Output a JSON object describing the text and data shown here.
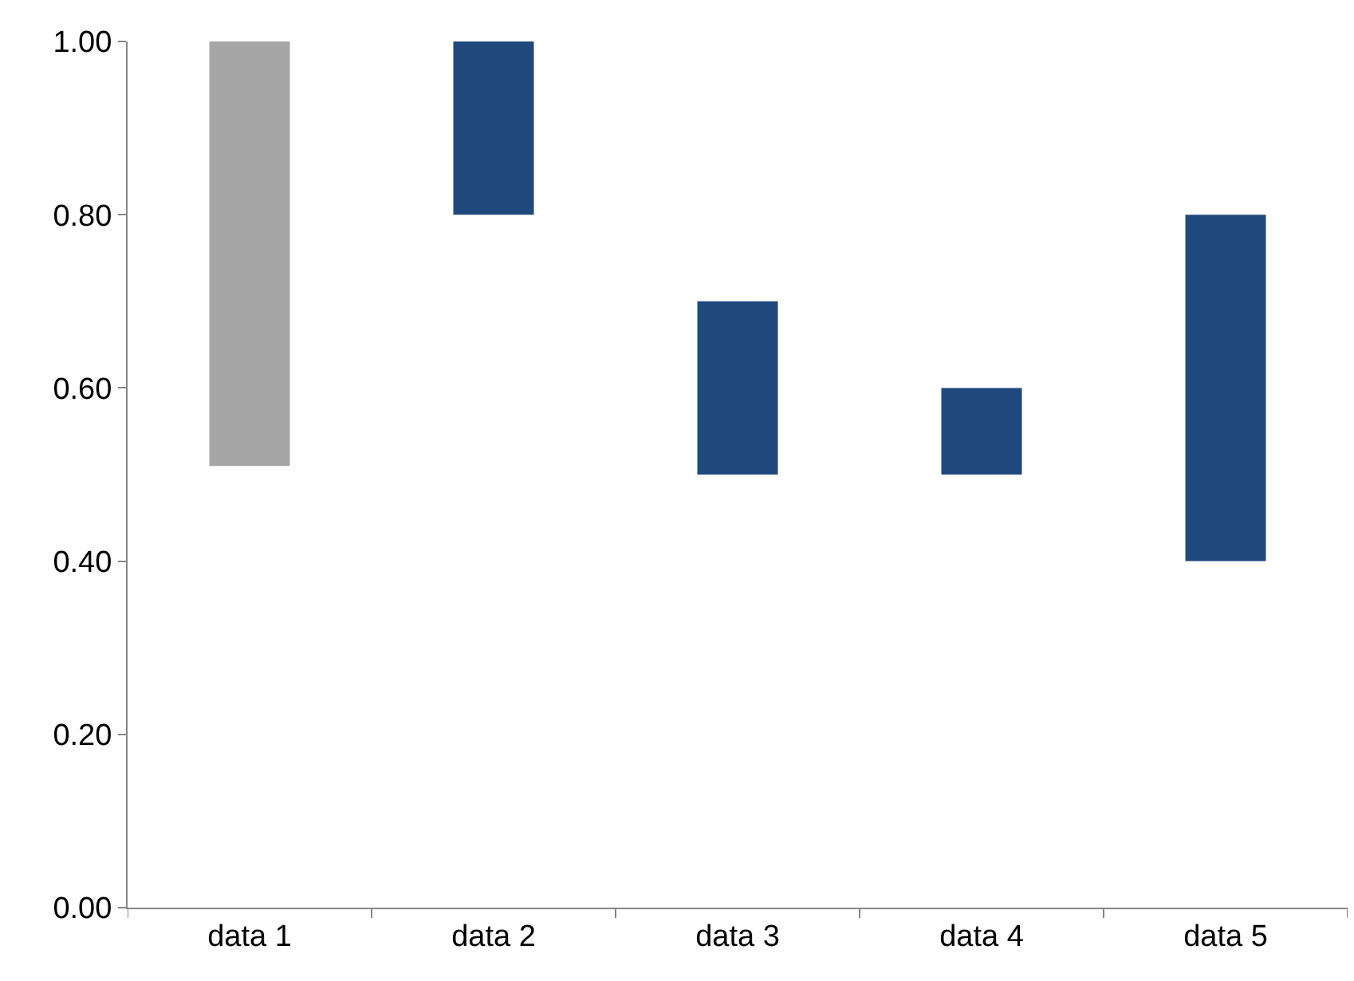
{
  "chart_data": {
    "type": "bar",
    "categories": [
      "data 1",
      "data 2",
      "data 3",
      "data 4",
      "data 5"
    ],
    "values": [
      -0.49,
      0.2,
      0.2,
      0.1,
      0.4
    ],
    "base": [
      1.0,
      0.8,
      0.5,
      0.5,
      0.4
    ],
    "colors": [
      "#a6a6a6",
      "#1f497d",
      "#1f497d",
      "#1f497d",
      "#1f497d"
    ],
    "ylim": [
      0,
      1.0
    ],
    "yticks": [
      {
        "value": 0,
        "label": "0.00"
      },
      {
        "value": 0.2,
        "label": "0.20"
      },
      {
        "value": 0.4,
        "label": "0.40"
      },
      {
        "value": 0.6,
        "label": "0.60"
      },
      {
        "value": 0.8,
        "label": "0.80"
      },
      {
        "value": 1.0,
        "label": "1.00"
      }
    ]
  }
}
